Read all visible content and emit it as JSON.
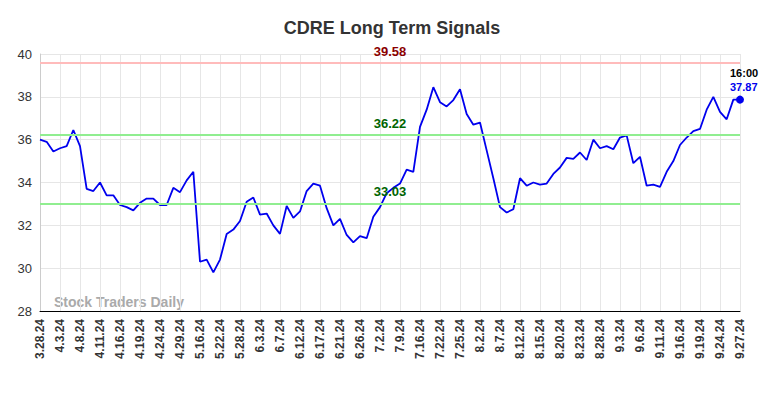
{
  "chart_data": {
    "type": "line",
    "title": "CDRE Long Term Signals",
    "watermark": "Stock Traders Daily",
    "last_label": "16:00",
    "categories": [
      "3.28.24",
      null,
      null,
      "4.3.24",
      null,
      null,
      "4.8.24",
      null,
      null,
      "4.11.24",
      null,
      null,
      "4.16.24",
      null,
      null,
      "4.19.24",
      null,
      null,
      "4.24.24",
      null,
      null,
      "4.29.24",
      null,
      null,
      "5.16.24",
      null,
      null,
      "5.22.24",
      null,
      null,
      "5.28.24",
      null,
      null,
      "6.3.24",
      null,
      null,
      "6.7.24",
      null,
      null,
      "6.12.24",
      null,
      null,
      "6.17.24",
      null,
      null,
      "6.21.24",
      null,
      null,
      "6.26.24",
      null,
      null,
      "7.2.24",
      null,
      null,
      "7.9.24",
      null,
      null,
      "7.16.24",
      null,
      null,
      "7.22.24",
      null,
      null,
      "7.25.24",
      null,
      null,
      "8.2.24",
      null,
      null,
      "8.7.24",
      null,
      null,
      "8.12.24",
      null,
      null,
      "8.15.24",
      null,
      null,
      "8.20.24",
      null,
      null,
      "8.23.24",
      null,
      null,
      "8.28.24",
      null,
      null,
      "9.3.24",
      null,
      null,
      "9.6.24",
      null,
      null,
      "9.11.24",
      null,
      null,
      "9.16.24",
      null,
      null,
      "9.19.24",
      null,
      null,
      "9.24.24",
      null,
      null,
      "9.27.24"
    ],
    "values": [
      36.0,
      35.9,
      35.45,
      35.6,
      35.7,
      36.45,
      35.7,
      33.7,
      33.6,
      34.0,
      33.4,
      33.4,
      32.95,
      32.85,
      32.7,
      33.05,
      33.25,
      33.25,
      32.95,
      32.95,
      33.75,
      33.55,
      34.1,
      34.5,
      30.3,
      30.4,
      29.8,
      30.4,
      31.6,
      31.8,
      32.2,
      33.1,
      33.3,
      32.5,
      32.55,
      32.0,
      31.6,
      32.9,
      32.35,
      32.65,
      33.6,
      33.95,
      33.85,
      32.8,
      32.0,
      32.3,
      31.55,
      31.2,
      31.5,
      31.4,
      32.4,
      32.85,
      33.5,
      33.75,
      33.95,
      34.6,
      34.5,
      36.6,
      37.4,
      38.45,
      37.75,
      37.55,
      37.85,
      38.35,
      37.2,
      36.7,
      36.8,
      35.5,
      34.2,
      32.85,
      32.6,
      32.75,
      34.2,
      33.85,
      34.0,
      33.9,
      33.95,
      34.4,
      34.7,
      35.15,
      35.1,
      35.4,
      35.05,
      36.0,
      35.6,
      35.7,
      35.55,
      36.1,
      36.2,
      34.9,
      35.2,
      33.85,
      33.9,
      33.8,
      34.5,
      35.0,
      35.75,
      36.1,
      36.4,
      36.5,
      37.4,
      38.0,
      37.3,
      36.95,
      37.87,
      37.87
    ],
    "color": "#0000ee",
    "reference_lines": [
      {
        "value": 39.58,
        "color": "#ffbbbb"
      },
      {
        "value": 36.22,
        "color": "#90ee90"
      },
      {
        "value": 33.03,
        "color": "#90ee90"
      }
    ],
    "ylim": [
      28,
      40
    ],
    "yticks": [
      28,
      30,
      32,
      34,
      36,
      38,
      40
    ],
    "grid": true
  }
}
